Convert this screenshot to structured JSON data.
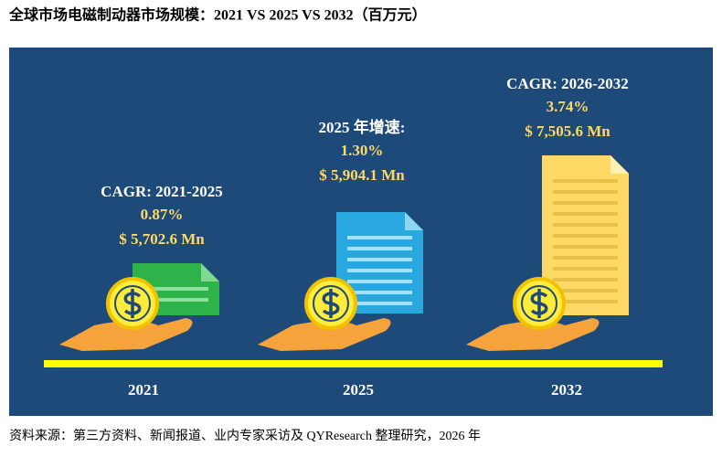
{
  "title": "全球市场电磁制动器市场规模：2021 VS 2025 VS 2032（百万元）",
  "columns": [
    {
      "year": "2021",
      "label": "CAGR: 2021-2025",
      "rate": "0.87%",
      "amount": "$ 5,702.6 Mn"
    },
    {
      "year": "2025",
      "label": "2025 年增速:",
      "rate": "1.30%",
      "amount": "$ 5,904.1 Mn"
    },
    {
      "year": "2032",
      "label": "CAGR: 2026-2032",
      "rate": "3.74%",
      "amount": "$ 7,505.6 Mn"
    }
  ],
  "source": "资料来源：第三方资料、新闻报道、业内专家采访及 QYResearch 整理研究，2026 年"
}
